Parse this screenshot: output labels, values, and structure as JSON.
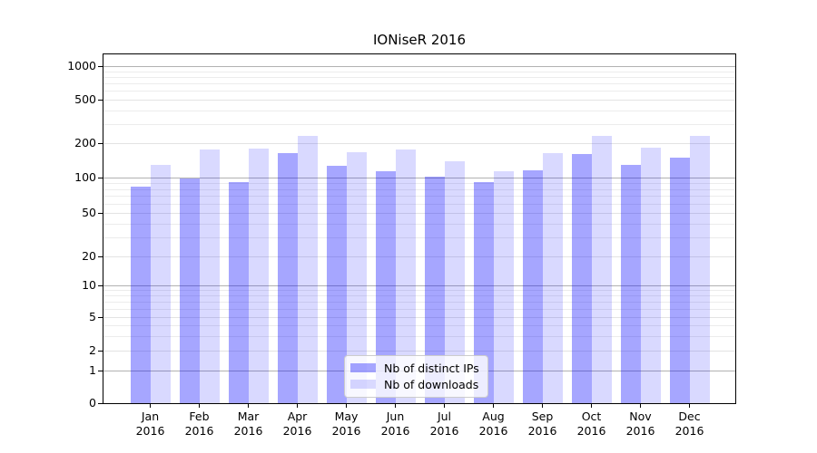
{
  "chart_data": {
    "type": "bar",
    "title": "IONiseR 2016",
    "categories": [
      {
        "month": "Jan",
        "year": "2016"
      },
      {
        "month": "Feb",
        "year": "2016"
      },
      {
        "month": "Mar",
        "year": "2016"
      },
      {
        "month": "Apr",
        "year": "2016"
      },
      {
        "month": "May",
        "year": "2016"
      },
      {
        "month": "Jun",
        "year": "2016"
      },
      {
        "month": "Jul",
        "year": "2016"
      },
      {
        "month": "Aug",
        "year": "2016"
      },
      {
        "month": "Sep",
        "year": "2016"
      },
      {
        "month": "Oct",
        "year": "2016"
      },
      {
        "month": "Nov",
        "year": "2016"
      },
      {
        "month": "Dec",
        "year": "2016"
      }
    ],
    "series": [
      {
        "name": "Nb of distinct IPs",
        "color": "rgba(0,0,255,0.35)",
        "values": [
          84,
          98,
          91,
          163,
          126,
          114,
          102,
          92,
          116,
          162,
          128,
          150
        ]
      },
      {
        "name": "Nb of downloads",
        "color": "rgba(0,0,255,0.15)",
        "values": [
          130,
          175,
          180,
          233,
          167,
          175,
          140,
          113,
          164,
          233,
          183,
          232
        ]
      }
    ],
    "y_axis": {
      "scale": "symlog-like (linear 0-1, log above)",
      "tick_values": [
        0,
        1,
        2,
        5,
        10,
        20,
        50,
        100,
        200,
        500,
        1000
      ],
      "tick_labels": [
        "0",
        "1",
        "2",
        "5",
        "10",
        "20",
        "50",
        "100",
        "200",
        "500",
        "1000"
      ],
      "major_grid_values": [
        1,
        10,
        100,
        1000
      ],
      "mid_grid_values": [
        2,
        5,
        20,
        50,
        200,
        500
      ],
      "minor_grid_values": [
        3,
        4,
        6,
        7,
        8,
        9,
        30,
        40,
        60,
        70,
        80,
        90,
        300,
        400,
        600,
        700,
        800,
        900
      ],
      "range": [
        0,
        1300
      ]
    },
    "legend": {
      "position": "lower center"
    },
    "grid": true
  },
  "colors": {
    "background": "#ffffff",
    "bar_distinct_ips": "rgba(0,0,255,0.35)",
    "bar_downloads": "rgba(0,0,255,0.15)",
    "grid_major": "#b1b1b1",
    "grid_mid": "#e3e3e3",
    "grid_minor": "#ececec",
    "spine": "#000000",
    "text": "#000000",
    "legend_border": "#cccccc"
  }
}
